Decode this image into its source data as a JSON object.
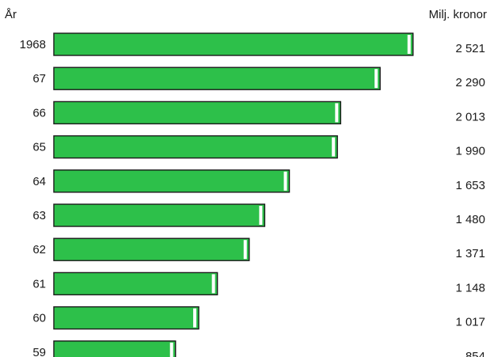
{
  "chart_data": {
    "type": "bar",
    "orientation": "horizontal",
    "category_header": "År",
    "value_header": "Milj. kronor",
    "categories": [
      "1968",
      "67",
      "66",
      "65",
      "64",
      "63",
      "62",
      "61",
      "60",
      "59"
    ],
    "values": [
      2521,
      2290,
      2013,
      1990,
      1653,
      1480,
      1371,
      1148,
      1017,
      854
    ],
    "value_labels": [
      "2 521",
      "2 290",
      "2 013",
      "1 990",
      "1 653",
      "1 480",
      "1 371",
      "1 148",
      "1 017",
      "854"
    ],
    "bar_color": "#2dc04a",
    "bar_highlight_color": "#ffffff",
    "bar_outline_color": "#1a1a1a",
    "grid": false,
    "legend": "none"
  }
}
